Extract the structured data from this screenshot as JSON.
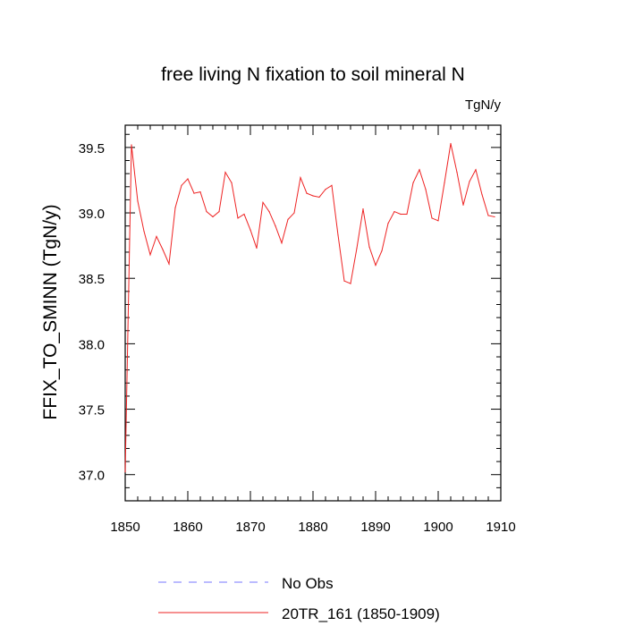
{
  "chart_data": {
    "type": "line",
    "title": "free living N fixation to soil mineral N",
    "units": "TgN/y",
    "ylabel": "FFIX_TO_SMINN  (TgN/y)",
    "xlabel": "",
    "xlim": [
      1850,
      1910
    ],
    "ylim": [
      36.8,
      39.67
    ],
    "xticks": [
      1850,
      1860,
      1870,
      1880,
      1890,
      1900,
      1910
    ],
    "xtick_labels": [
      "1850",
      "1860",
      "1870",
      "1880",
      "1890",
      "1900",
      "1910"
    ],
    "yticks": [
      37.0,
      37.5,
      38.0,
      38.5,
      39.0,
      39.5
    ],
    "ytick_labels": [
      "37.0",
      "37.5",
      "38.0",
      "38.5",
      "39.0",
      "39.5"
    ],
    "legend_position": "bottom-center",
    "series": [
      {
        "name": "No Obs",
        "color": "#7777ff",
        "style": "dashed",
        "x": [],
        "values": []
      },
      {
        "name": "20TR_161 (1850-1909)",
        "color": "#ee2222",
        "style": "solid",
        "x": [
          1850,
          1851,
          1852,
          1853,
          1854,
          1855,
          1856,
          1857,
          1858,
          1859,
          1860,
          1861,
          1862,
          1863,
          1864,
          1865,
          1866,
          1867,
          1868,
          1869,
          1870,
          1871,
          1872,
          1873,
          1874,
          1875,
          1876,
          1877,
          1878,
          1879,
          1880,
          1881,
          1882,
          1883,
          1884,
          1885,
          1886,
          1887,
          1888,
          1889,
          1890,
          1891,
          1892,
          1893,
          1894,
          1895,
          1896,
          1897,
          1898,
          1899,
          1900,
          1901,
          1902,
          1903,
          1904,
          1905,
          1906,
          1907,
          1908,
          1909
        ],
        "values": [
          37.02,
          39.52,
          39.09,
          38.86,
          38.68,
          38.82,
          38.72,
          38.61,
          39.04,
          39.21,
          39.26,
          39.15,
          39.16,
          39.01,
          38.97,
          39.01,
          39.31,
          39.23,
          38.96,
          38.99,
          38.87,
          38.73,
          39.08,
          39.01,
          38.9,
          38.77,
          38.95,
          39.0,
          39.27,
          39.15,
          39.13,
          39.12,
          39.18,
          39.21,
          38.83,
          38.48,
          38.46,
          38.73,
          39.03,
          38.74,
          38.6,
          38.71,
          38.92,
          39.01,
          38.99,
          38.99,
          39.23,
          39.33,
          39.18,
          38.96,
          38.94,
          39.23,
          39.53,
          39.31,
          39.06,
          39.24,
          39.33,
          39.14,
          38.98,
          38.97
        ]
      }
    ]
  }
}
